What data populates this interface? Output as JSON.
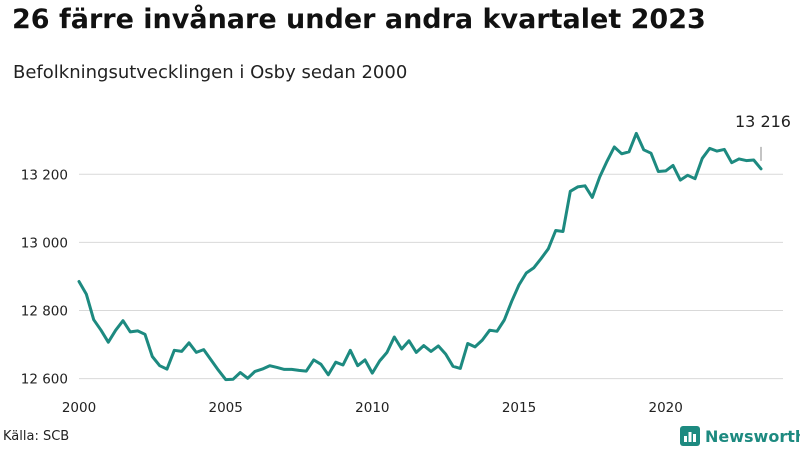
{
  "header": {
    "title": "26 färre invånare under andra kvartalet 2023",
    "subtitle": "Befolkningsutvecklingen i Osby sedan 2000"
  },
  "footer": {
    "source": "Källa: SCB",
    "brand": "Newsworthy",
    "brand_icon": "bar-chart-logo-icon"
  },
  "colors": {
    "line": "#1d8a80",
    "grid": "#d9d9d9",
    "brand": "#1d8a80"
  },
  "chart_data": {
    "type": "line",
    "title": "26 färre invånare under andra kvartalet 2023",
    "subtitle": "Befolkningsutvecklingen i Osby sedan 2000",
    "xlabel": "",
    "ylabel": "",
    "xlim": [
      2000,
      2024
    ],
    "ylim": [
      12590,
      13330
    ],
    "x_ticks": [
      2000,
      2005,
      2010,
      2015,
      2020
    ],
    "x_tick_labels": [
      "2000",
      "2005",
      "2010",
      "2015",
      "2020"
    ],
    "y_ticks": [
      12600,
      12800,
      13000,
      13200
    ],
    "y_tick_labels": [
      "12 600",
      "12 800",
      "13 000",
      "13 200"
    ],
    "grid": "horizontal",
    "legend": "none",
    "annotation": {
      "text": "13 216",
      "x": 2023.25,
      "y": 13216
    },
    "series": [
      {
        "x": [
          2000.0,
          2000.25,
          2000.5,
          2000.75,
          2001.0,
          2001.25,
          2001.5,
          2001.75,
          2002.0,
          2002.25,
          2002.5,
          2002.75,
          2003.0,
          2003.25,
          2003.5,
          2003.75,
          2004.0,
          2004.25,
          2004.5,
          2004.75,
          2005.0,
          2005.25,
          2005.5,
          2005.75,
          2006.0,
          2006.25,
          2006.5,
          2006.75,
          2007.0,
          2007.25,
          2007.5,
          2007.75,
          2008.0,
          2008.25,
          2008.5,
          2008.75,
          2009.0,
          2009.25,
          2009.5,
          2009.75,
          2010.0,
          2010.25,
          2010.5,
          2010.75,
          2011.0,
          2011.25,
          2011.5,
          2011.75,
          2012.0,
          2012.25,
          2012.5,
          2012.75,
          2013.0,
          2013.25,
          2013.5,
          2013.75,
          2014.0,
          2014.25,
          2014.5,
          2014.75,
          2015.0,
          2015.25,
          2015.5,
          2015.75,
          2016.0,
          2016.25,
          2016.5,
          2016.75,
          2017.0,
          2017.25,
          2017.5,
          2017.75,
          2018.0,
          2018.25,
          2018.5,
          2018.75,
          2019.0,
          2019.25,
          2019.5,
          2019.75,
          2020.0,
          2020.25,
          2020.5,
          2020.75,
          2021.0,
          2021.25,
          2021.5,
          2021.75,
          2022.0,
          2022.25,
          2022.5,
          2022.75,
          2023.0,
          2023.25
        ],
        "y": [
          12885,
          12848,
          12773,
          12742,
          12707,
          12742,
          12770,
          12737,
          12740,
          12730,
          12665,
          12638,
          12628,
          12683,
          12680,
          12705,
          12677,
          12685,
          12655,
          12625,
          12597,
          12598,
          12618,
          12601,
          12621,
          12628,
          12638,
          12633,
          12627,
          12627,
          12624,
          12622,
          12655,
          12642,
          12611,
          12648,
          12640,
          12683,
          12638,
          12655,
          12616,
          12652,
          12677,
          12722,
          12687,
          12711,
          12677,
          12697,
          12680,
          12696,
          12672,
          12636,
          12630,
          12703,
          12693,
          12713,
          12742,
          12739,
          12772,
          12827,
          12875,
          12910,
          12925,
          12952,
          12981,
          13035,
          13032,
          13150,
          13163,
          13166,
          13132,
          13192,
          13238,
          13280,
          13260,
          13266,
          13320,
          13272,
          13262,
          13208,
          13210,
          13226,
          13183,
          13197,
          13187,
          13247,
          13276,
          13268,
          13273,
          13234,
          13245,
          13240,
          13242,
          13216
        ]
      }
    ]
  }
}
